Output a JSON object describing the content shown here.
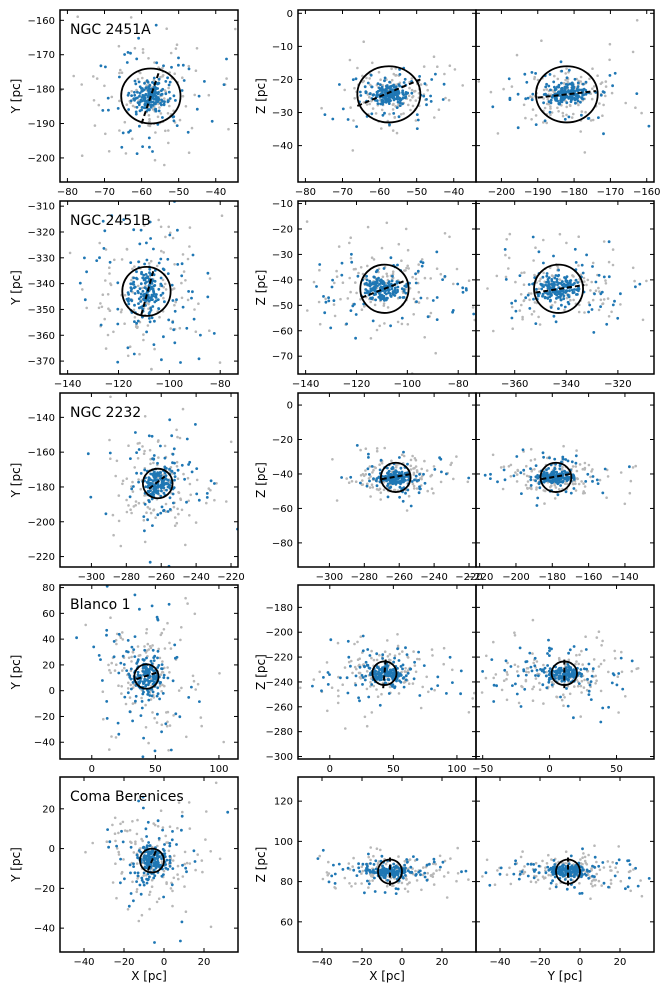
{
  "colors": {
    "member": "#1f77b4",
    "background": "#b8b8b8",
    "ellipse": "#000000"
  },
  "chart_data": [
    {
      "type": "scatter",
      "row": 0,
      "col": 0,
      "title": "NGC 2451A",
      "xlabel": "",
      "ylabel": "Y [pc]",
      "xlim": [
        -82,
        -34
      ],
      "ylim": [
        -207,
        -157
      ],
      "xticks": [
        -80,
        -70,
        -60,
        -50,
        -40
      ],
      "yticks": [
        -160,
        -170,
        -180,
        -190,
        -200
      ],
      "center": [
        -57.5,
        -182
      ],
      "radius": 8,
      "axis_line": [
        [
          -60,
          -190
        ],
        [
          -55,
          -174
        ]
      ],
      "spread": [
        5,
        5
      ]
    },
    {
      "type": "scatter",
      "row": 0,
      "col": 1,
      "title": "",
      "xlabel": "",
      "ylabel": "Z [pc]",
      "xlim": [
        -82,
        -34
      ],
      "ylim": [
        -51,
        1
      ],
      "xticks": [
        -80,
        -70,
        -60,
        -50,
        -40
      ],
      "yticks": [
        0,
        -10,
        -20,
        -30,
        -40
      ],
      "center": [
        -57.5,
        -24.5
      ],
      "radius": 8.5,
      "axis_line": [
        [
          -66,
          -28
        ],
        [
          -49,
          -20
        ]
      ],
      "spread": [
        5,
        3
      ]
    },
    {
      "type": "scatter",
      "row": 0,
      "col": 2,
      "title": "",
      "xlabel": "",
      "ylabel": "",
      "xlim": [
        -207,
        -158
      ],
      "ylim": [
        -51,
        1
      ],
      "xticks": [
        -200,
        -190,
        -180,
        -170,
        -160
      ],
      "yticks": [
        0,
        -10,
        -20,
        -30,
        -40
      ],
      "center": [
        -182,
        -24.5
      ],
      "radius": 8.5,
      "axis_line": [
        [
          -190,
          -25.5
        ],
        [
          -174,
          -23.5
        ]
      ],
      "spread": [
        5,
        3
      ]
    },
    {
      "type": "scatter",
      "row": 1,
      "col": 0,
      "title": "NGC 2451B",
      "xlabel": "",
      "ylabel": "Y [pc]",
      "xlim": [
        -143,
        -73
      ],
      "ylim": [
        -375,
        -308
      ],
      "xticks": [
        -140,
        -120,
        -100,
        -80
      ],
      "yticks": [
        -310,
        -320,
        -330,
        -340,
        -350,
        -360,
        -370
      ],
      "center": [
        -109,
        -343
      ],
      "radius": 9.5,
      "axis_line": [
        [
          -111,
          -352
        ],
        [
          -106,
          -334
        ]
      ],
      "spread": [
        9,
        12
      ]
    },
    {
      "type": "scatter",
      "row": 1,
      "col": 1,
      "title": "",
      "xlabel": "",
      "ylabel": "Z [pc]",
      "xlim": [
        -143,
        -73
      ],
      "ylim": [
        -77,
        -9
      ],
      "xticks": [
        -140,
        -120,
        -100,
        -80
      ],
      "yticks": [
        -10,
        -20,
        -30,
        -40,
        -50,
        -60,
        -70
      ],
      "center": [
        -109,
        -43.5
      ],
      "radius": 9.5,
      "axis_line": [
        [
          -118,
          -47
        ],
        [
          -100,
          -40
        ]
      ],
      "spread": [
        9,
        5
      ]
    },
    {
      "type": "scatter",
      "row": 1,
      "col": 2,
      "title": "",
      "xlabel": "",
      "ylabel": "",
      "xlim": [
        -375,
        -306
      ],
      "ylim": [
        -77,
        -9
      ],
      "xticks": [
        -360,
        -340,
        -320
      ],
      "yticks": [
        -10,
        -20,
        -30,
        -40,
        -50,
        -60,
        -70
      ],
      "center": [
        -343,
        -43.5
      ],
      "radius": 9.5,
      "axis_line": [
        [
          -352,
          -45
        ],
        [
          -333,
          -42
        ]
      ],
      "spread": [
        10,
        5
      ]
    },
    {
      "type": "scatter",
      "row": 2,
      "col": 0,
      "title": "NGC 2232",
      "xlabel": "",
      "ylabel": "Y [pc]",
      "xlim": [
        -318,
        -216
      ],
      "ylim": [
        -226,
        -126
      ],
      "xticks": [
        -300,
        -280,
        -260,
        -240,
        -220
      ],
      "yticks": [
        -140,
        -160,
        -180,
        -200,
        -220
      ],
      "center": [
        -262,
        -178
      ],
      "radius": 8.5,
      "axis_line": [
        [
          -267,
          -181
        ],
        [
          -258,
          -174
        ]
      ],
      "spread": [
        9,
        10
      ]
    },
    {
      "type": "scatter",
      "row": 2,
      "col": 1,
      "title": "",
      "xlabel": "",
      "ylabel": "Z [pc]",
      "xlim": [
        -318,
        -216
      ],
      "ylim": [
        -94,
        7
      ],
      "xticks": [
        -300,
        -280,
        -260,
        -240,
        -220
      ],
      "yticks": [
        0,
        -20,
        -40,
        -60,
        -80
      ],
      "center": [
        -262,
        -42
      ],
      "radius": 8.5,
      "axis_line": [
        [
          -270,
          -43
        ],
        [
          -253,
          -40
        ]
      ],
      "spread": [
        9,
        4
      ]
    },
    {
      "type": "scatter",
      "row": 2,
      "col": 2,
      "title": "",
      "xlabel": "",
      "ylabel": "",
      "xlim": [
        -222,
        -124
      ],
      "ylim": [
        -94,
        7
      ],
      "xticks": [
        -220,
        -200,
        -180,
        -160,
        -140
      ],
      "yticks": [
        0,
        -20,
        -40,
        -60,
        -80
      ],
      "center": [
        -178,
        -42
      ],
      "radius": 8.5,
      "axis_line": [
        [
          -186,
          -43
        ],
        [
          -170,
          -40
        ]
      ],
      "spread": [
        10,
        4
      ]
    },
    {
      "type": "scatter",
      "row": 3,
      "col": 0,
      "title": "Blanco 1",
      "xlabel": "",
      "ylabel": "Y [pc]",
      "xlim": [
        -25,
        115
      ],
      "ylim": [
        -53,
        82
      ],
      "xticks": [
        0,
        50,
        100
      ],
      "yticks": [
        80,
        60,
        40,
        20,
        0,
        -20,
        -40
      ],
      "center": [
        43,
        11
      ],
      "radius": 9.5,
      "axis_line": [
        [
          35,
          9
        ],
        [
          51,
          14
        ]
      ],
      "spread": [
        14,
        18
      ]
    },
    {
      "type": "scatter",
      "row": 3,
      "col": 1,
      "title": "",
      "xlabel": "",
      "ylabel": "Z [pc]",
      "xlim": [
        -25,
        115
      ],
      "ylim": [
        -302,
        -162
      ],
      "xticks": [
        0,
        50,
        100
      ],
      "yticks": [
        -180,
        -200,
        -220,
        -240,
        -260,
        -280,
        -300
      ],
      "center": [
        43,
        -233
      ],
      "radius": 9.5,
      "axis_line": [
        [
          44,
          -222
        ],
        [
          42,
          -245
        ]
      ],
      "spread": [
        18,
        8
      ]
    },
    {
      "type": "scatter",
      "row": 3,
      "col": 2,
      "title": "",
      "xlabel": "",
      "ylabel": "",
      "xlim": [
        -55,
        78
      ],
      "ylim": [
        -302,
        -162
      ],
      "xticks": [
        -50,
        0,
        50
      ],
      "yticks": [
        -180,
        -200,
        -220,
        -240,
        -260,
        -280,
        -300
      ],
      "center": [
        11,
        -233
      ],
      "radius": 9.5,
      "axis_line": [
        [
          11,
          -222
        ],
        [
          11,
          -245
        ]
      ],
      "spread": [
        20,
        8
      ]
    },
    {
      "type": "scatter",
      "row": 4,
      "col": 0,
      "title": "Coma Berenices",
      "xlabel": "X [pc]",
      "ylabel": "Y [pc]",
      "xlim": [
        -52,
        37
      ],
      "ylim": [
        -52,
        36
      ],
      "xticks": [
        -40,
        -20,
        0,
        20
      ],
      "yticks": [
        20,
        0,
        -20,
        -40
      ],
      "center": [
        -6,
        -6
      ],
      "radius": 6,
      "axis_line": [
        [
          -8,
          -11
        ],
        [
          -4,
          -1
        ]
      ],
      "spread": [
        8,
        9
      ]
    },
    {
      "type": "scatter",
      "row": 4,
      "col": 1,
      "title": "",
      "xlabel": "X [pc]",
      "ylabel": "Z [pc]",
      "xlim": [
        -52,
        37
      ],
      "ylim": [
        45,
        132
      ],
      "xticks": [
        -40,
        -20,
        0,
        20
      ],
      "yticks": [
        120,
        100,
        80,
        60
      ],
      "center": [
        -6,
        85
      ],
      "radius": 6,
      "axis_line": [
        [
          -6,
          78
        ],
        [
          -6,
          92
        ]
      ],
      "spread": [
        11,
        3
      ]
    },
    {
      "type": "scatter",
      "row": 4,
      "col": 2,
      "title": "",
      "xlabel": "Y [pc]",
      "ylabel": "",
      "xlim": [
        -52,
        37
      ],
      "ylim": [
        45,
        132
      ],
      "xticks": [
        -40,
        -20,
        0,
        20
      ],
      "yticks": [
        120,
        100,
        80,
        60
      ],
      "center": [
        -6,
        85
      ],
      "radius": 6,
      "axis_line": [
        [
          -6,
          78
        ],
        [
          -6,
          92
        ]
      ],
      "spread": [
        12,
        3
      ]
    }
  ]
}
